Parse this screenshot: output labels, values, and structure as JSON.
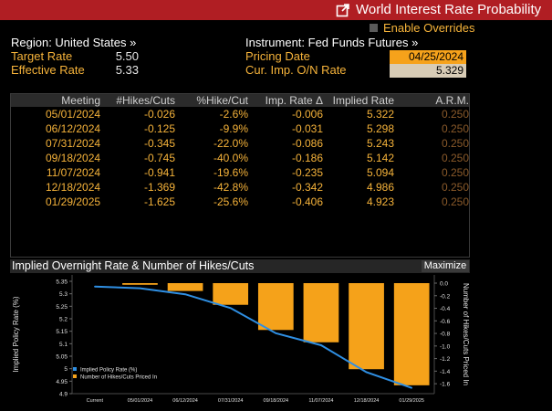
{
  "window": {
    "title": "World Interest Rate Probability",
    "icon": "export-icon"
  },
  "enable_overrides": {
    "label": "Enable Overrides",
    "checked": false
  },
  "region": {
    "label": "Region: United States »"
  },
  "instrument": {
    "label": "Instrument: Fed Funds Futures »"
  },
  "target_rate": {
    "label": "Target Rate",
    "value": "5.50"
  },
  "effective_rate": {
    "label": "Effective Rate",
    "value": "5.33"
  },
  "pricing_date": {
    "label": "Pricing Date",
    "value": "04/25/2024"
  },
  "cur_imp_rate": {
    "label": "Cur. Imp. O/N Rate",
    "value": "5.329"
  },
  "table": {
    "headers": [
      "Meeting",
      "#Hikes/Cuts",
      "%Hike/Cut",
      "Imp. Rate Δ",
      "Implied Rate",
      "A.R.M."
    ],
    "rows": [
      [
        "05/01/2024",
        "-0.026",
        "-2.6%",
        "-0.006",
        "5.322",
        "0.250"
      ],
      [
        "06/12/2024",
        "-0.125",
        "-9.9%",
        "-0.031",
        "5.298",
        "0.250"
      ],
      [
        "07/31/2024",
        "-0.345",
        "-22.0%",
        "-0.086",
        "5.243",
        "0.250"
      ],
      [
        "09/18/2024",
        "-0.745",
        "-40.0%",
        "-0.186",
        "5.142",
        "0.250"
      ],
      [
        "11/07/2024",
        "-0.941",
        "-19.6%",
        "-0.235",
        "5.094",
        "0.250"
      ],
      [
        "12/18/2024",
        "-1.369",
        "-42.8%",
        "-0.342",
        "4.986",
        "0.250"
      ],
      [
        "01/29/2025",
        "-1.625",
        "-25.6%",
        "-0.406",
        "4.923",
        "0.250"
      ]
    ]
  },
  "chart_section": {
    "title": "Implied Overnight Rate & Number of Hikes/Cuts",
    "maximize_label": "Maximize"
  },
  "chart_data": {
    "type": "bar",
    "categories": [
      "Current",
      "05/01/2024",
      "06/12/2024",
      "07/31/2024",
      "09/18/2024",
      "11/07/2024",
      "12/18/2024",
      "01/29/2025"
    ],
    "series": [
      {
        "name": "Implied Policy Rate (%)",
        "type": "line",
        "axis": "left",
        "color": "#2f8fe3",
        "values": [
          5.329,
          5.322,
          5.298,
          5.243,
          5.142,
          5.094,
          4.986,
          4.923
        ]
      },
      {
        "name": "Number of Hikes/Cuts Priced In",
        "type": "bar",
        "axis": "right",
        "color": "#f5a21a",
        "values": [
          0,
          -0.026,
          -0.125,
          -0.345,
          -0.745,
          -0.941,
          -1.369,
          -1.625
        ]
      }
    ],
    "ylabel": "Implied Policy Rate (%)",
    "y2label": "Number of Hikes/Cuts Priced In",
    "ylim": [
      4.9,
      5.35
    ],
    "y2lim": [
      -1.7,
      0.1
    ],
    "yticks": [
      "5.35",
      "5.3",
      "5.25",
      "5.2",
      "5.15",
      "5.1",
      "5.05",
      "5",
      "4.95",
      "4.9"
    ],
    "y2ticks": [
      "0.0",
      "-0.2",
      "-0.4",
      "-0.6",
      "-0.8",
      "-1.0",
      "-1.2",
      "-1.4",
      "-1.6"
    ],
    "legend": [
      "Implied Policy Rate (%)",
      "Number of Hikes/Cuts Priced In"
    ],
    "legend_position": "bottom-left"
  }
}
